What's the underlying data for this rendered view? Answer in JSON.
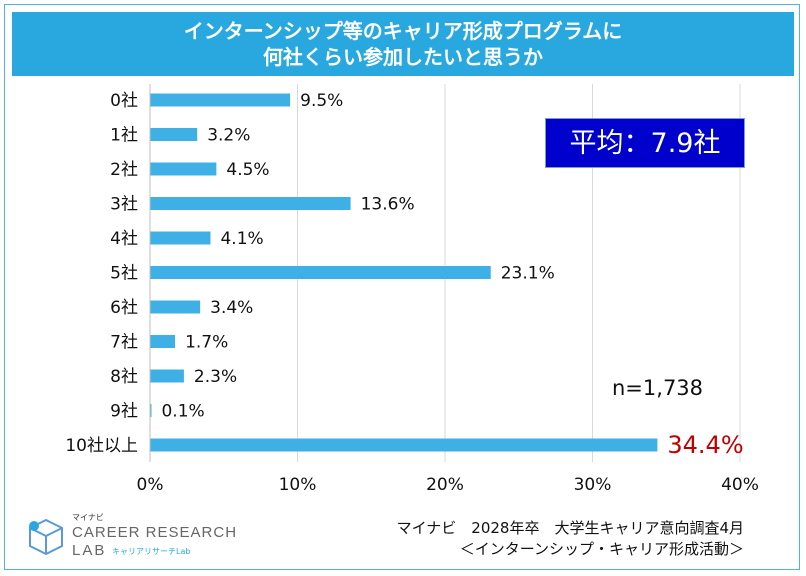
{
  "title": {
    "line1": "インターンシップ等のキャリア形成プログラムに",
    "line2": "何社くらい参加したいと思うか"
  },
  "average_label": "平均：7.9社",
  "n_label": "n=1,738",
  "source": {
    "line1": "マイナビ　2028年卒　大学生キャリア意向調査4月",
    "line2": "＜インターンシップ・キャリア形成活動＞"
  },
  "logo": {
    "small": "マイナビ",
    "main": "CAREER RESEARCH",
    "lab": "LAB",
    "sub": "キャリアリサーチLab"
  },
  "colors": {
    "bar": "#3fb0e6",
    "highlight_label": "#c00000",
    "title_bg": "#29a8e0",
    "average_bg": "#0000cc"
  },
  "chart_data": {
    "type": "bar",
    "orientation": "horizontal",
    "categories": [
      "0社",
      "1社",
      "2社",
      "3社",
      "4社",
      "5社",
      "6社",
      "7社",
      "8社",
      "9社",
      "10社以上"
    ],
    "values": [
      9.5,
      3.2,
      4.5,
      13.6,
      4.1,
      23.1,
      3.4,
      1.7,
      2.3,
      0.1,
      34.4
    ],
    "value_labels": [
      "9.5%",
      "3.2%",
      "4.5%",
      "13.6%",
      "4.1%",
      "23.1%",
      "3.4%",
      "1.7%",
      "2.3%",
      "0.1%",
      "34.4%"
    ],
    "highlight_index": 10,
    "xlim": [
      0,
      40
    ],
    "xticks": [
      0,
      10,
      20,
      30,
      40
    ],
    "xtick_labels": [
      "0%",
      "10%",
      "20%",
      "30%",
      "40%"
    ],
    "grid": "vertical"
  }
}
